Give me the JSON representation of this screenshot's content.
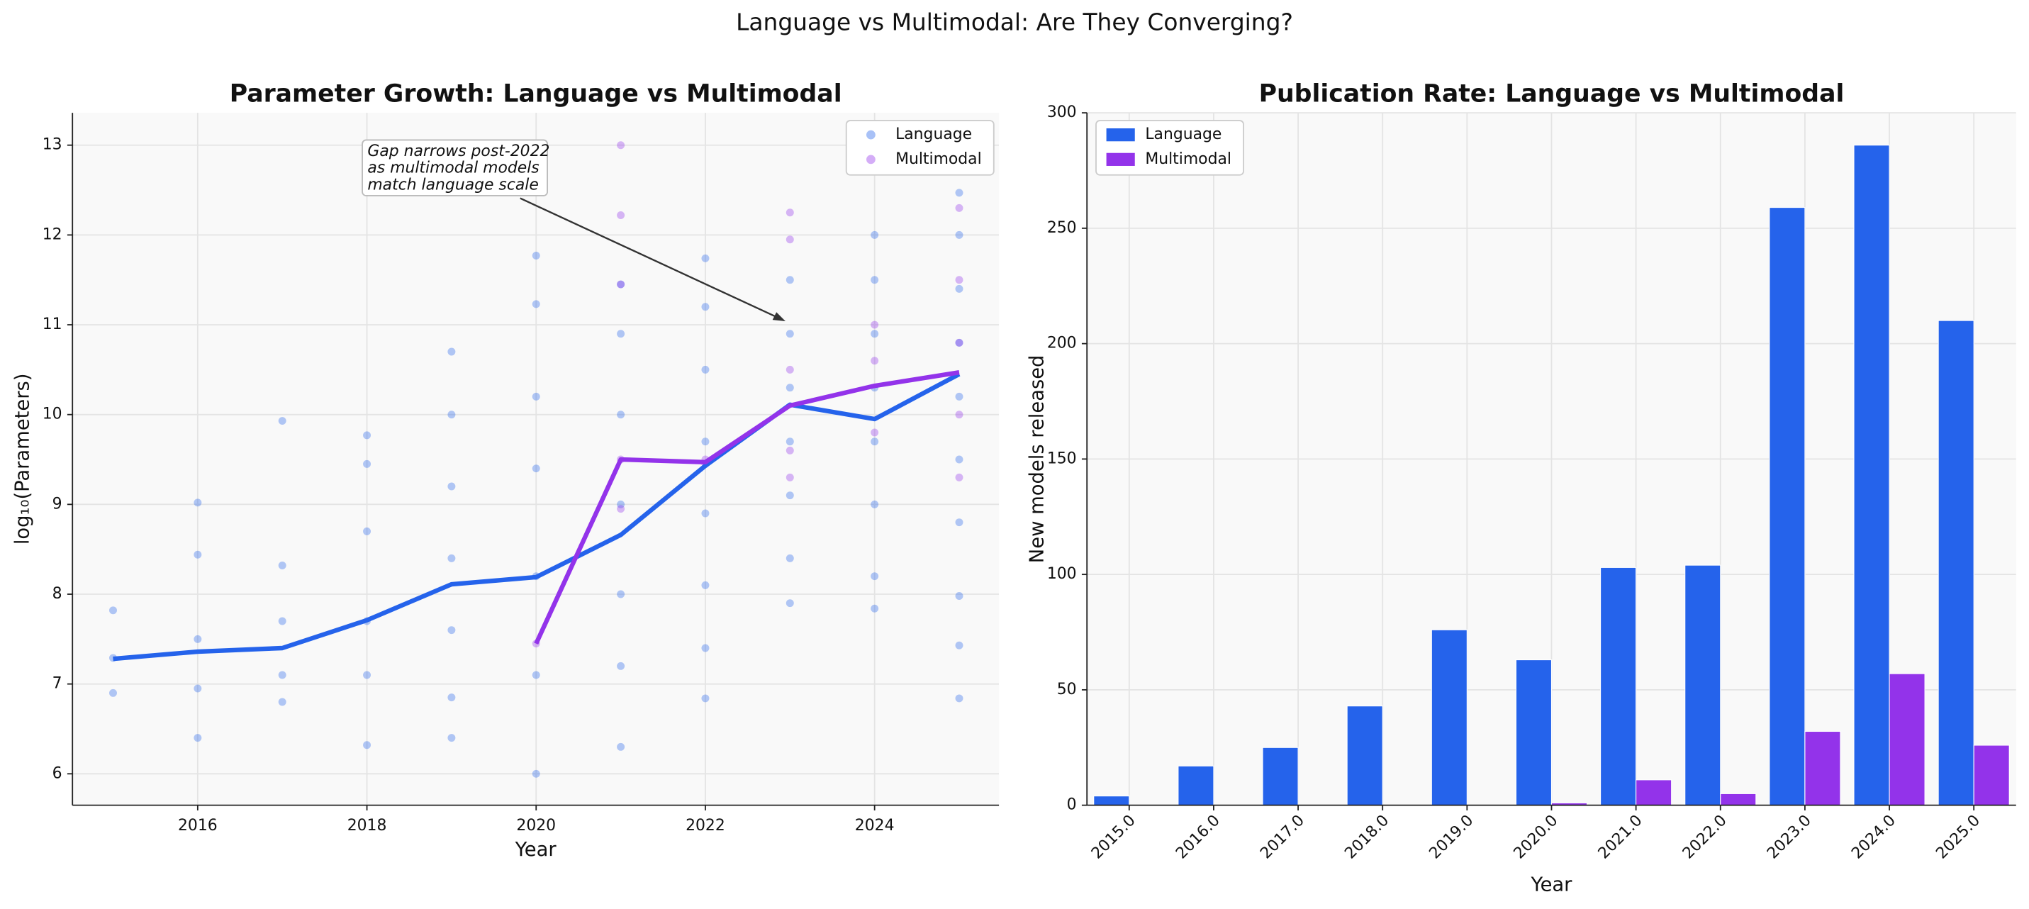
{
  "figure_title": "Language vs Multimodal: Are They Converging?",
  "chart_data": [
    {
      "type": "scatter",
      "title": "Parameter Growth: Language vs Multimodal",
      "x_label": "Year",
      "y_label": "log₁₀(Parameters)",
      "xlim": [
        2014.52,
        2025.47
      ],
      "ylim": [
        5.65,
        13.36
      ],
      "xticks": [
        2016,
        2018,
        2020,
        2022,
        2024
      ],
      "yticks": [
        6,
        7,
        8,
        9,
        10,
        11,
        12,
        13
      ],
      "grid": true,
      "legend": "upper right",
      "annotation": [
        "Gap narrows post-2022",
        "as multimodal models",
        "match language scale"
      ],
      "series": [
        {
          "name": "Language",
          "color": "#2563eb",
          "x": [
            2015,
            2015,
            2015,
            2016,
            2016,
            2016,
            2016,
            2016,
            2017,
            2017,
            2017,
            2017,
            2017,
            2018,
            2018,
            2018,
            2018,
            2018,
            2018,
            2019,
            2019,
            2019,
            2019,
            2019,
            2019,
            2019,
            2020,
            2020,
            2020,
            2020,
            2020,
            2020,
            2020,
            2021,
            2021,
            2021,
            2021,
            2021,
            2021,
            2021,
            2022,
            2022,
            2022,
            2022,
            2022,
            2022,
            2022,
            2022,
            2023,
            2023,
            2023,
            2023,
            2023,
            2023,
            2023,
            2024,
            2024,
            2024,
            2024,
            2024,
            2024,
            2024,
            2024,
            2025,
            2025,
            2025,
            2025,
            2025,
            2025,
            2025,
            2025,
            2025,
            2025
          ],
          "values": [
            7.82,
            7.29,
            6.9,
            9.02,
            8.44,
            7.5,
            6.95,
            6.4,
            9.93,
            8.32,
            7.7,
            7.1,
            6.8,
            9.77,
            9.45,
            8.7,
            7.7,
            7.1,
            6.32,
            10.7,
            10.0,
            9.2,
            8.4,
            7.6,
            6.85,
            6.4,
            11.77,
            11.23,
            10.2,
            9.4,
            8.2,
            7.1,
            6.0,
            11.45,
            10.9,
            10.0,
            9.0,
            8.0,
            7.2,
            6.3,
            11.74,
            11.2,
            10.5,
            9.7,
            8.9,
            8.1,
            7.4,
            6.84,
            11.5,
            10.9,
            10.3,
            9.7,
            9.1,
            8.4,
            7.9,
            12.0,
            11.5,
            10.9,
            10.3,
            9.7,
            9.0,
            8.2,
            7.84,
            12.47,
            12.0,
            11.4,
            10.8,
            10.2,
            9.5,
            8.8,
            7.98,
            7.43,
            6.84
          ],
          "trend_x": [
            2015,
            2016,
            2017,
            2018,
            2019,
            2020,
            2021,
            2022,
            2023,
            2024,
            2025
          ],
          "trend": [
            7.28,
            7.36,
            7.4,
            7.71,
            8.11,
            8.19,
            8.66,
            9.43,
            10.11,
            9.95,
            10.45
          ]
        },
        {
          "name": "Multimodal",
          "color": "#9333ea",
          "x": [
            2020,
            2021,
            2021,
            2021,
            2021,
            2021,
            2022,
            2022,
            2023,
            2023,
            2023,
            2023,
            2023,
            2024,
            2024,
            2024,
            2025,
            2025,
            2025,
            2025,
            2025
          ],
          "values": [
            7.45,
            13.0,
            12.22,
            11.45,
            9.5,
            8.95,
            9.5,
            9.45,
            12.25,
            11.95,
            10.5,
            9.6,
            9.3,
            11.0,
            10.6,
            9.8,
            12.3,
            11.5,
            10.8,
            10.0,
            9.3
          ],
          "trend_x": [
            2020,
            2021,
            2022,
            2023,
            2024,
            2025
          ],
          "trend": [
            7.45,
            9.5,
            9.47,
            10.1,
            10.32,
            10.47
          ]
        }
      ]
    },
    {
      "type": "bar",
      "title": "Publication Rate: Language vs Multimodal",
      "x_label": "Year",
      "y_label": "New models released",
      "categories": [
        "2015.0",
        "2016.0",
        "2017.0",
        "2018.0",
        "2019.0",
        "2020.0",
        "2021.0",
        "2022.0",
        "2023.0",
        "2024.0",
        "2025.0"
      ],
      "ylim": [
        0,
        300
      ],
      "yticks": [
        0,
        50,
        100,
        150,
        200,
        250,
        300
      ],
      "grid": true,
      "legend": "upper left",
      "series": [
        {
          "name": "Language",
          "color": "#2563eb",
          "values": [
            4,
            17,
            25,
            43,
            76,
            63,
            103,
            104,
            259,
            286,
            210
          ]
        },
        {
          "name": "Multimodal",
          "color": "#9333ea",
          "values": [
            0,
            0,
            0,
            0,
            0,
            1,
            11,
            5,
            32,
            57,
            26
          ]
        }
      ]
    }
  ]
}
